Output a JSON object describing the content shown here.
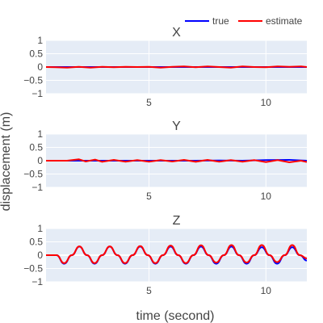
{
  "chart_data": {
    "type": "line",
    "xlabel": "time (second)",
    "ylabel": "displacement (m)",
    "legend": {
      "placement": "top-right",
      "entries": [
        {
          "name": "true",
          "color": "#0000ff"
        },
        {
          "name": "estimate",
          "color": "#ff0000"
        }
      ]
    },
    "grid": true,
    "background_color": "#e5ecf6",
    "xlim": [
      0.6,
      11.75
    ],
    "x_tick_values": [
      5,
      10
    ],
    "x_tick_labels": [
      "5",
      "10"
    ],
    "panels": [
      {
        "title": "X",
        "ylim": [
          -1,
          1
        ],
        "y_tick_values": [
          1,
          0.5,
          0,
          -0.5,
          -1
        ],
        "y_tick_labels": [
          "1",
          "0.5",
          "0",
          "−0.5",
          "−1"
        ],
        "series": [
          {
            "name": "true",
            "x": [
              0.6,
              1.5,
              2.5,
              3.5,
              4.5,
              5.5,
              6.5,
              7.5,
              8.5,
              9.5,
              10.5,
              11.75
            ],
            "y": [
              0,
              0,
              0,
              0,
              0,
              0,
              0,
              0,
              0,
              0,
              0,
              0
            ]
          },
          {
            "name": "estimate",
            "x": [
              0.6,
              1.0,
              1.5,
              2.0,
              2.5,
              3.0,
              3.5,
              4.0,
              4.5,
              5.0,
              5.5,
              6.0,
              6.5,
              7.0,
              7.5,
              8.0,
              8.5,
              9.0,
              9.5,
              10.0,
              10.5,
              11.0,
              11.5,
              11.75
            ],
            "y": [
              0,
              -0.01,
              -0.02,
              0.01,
              -0.02,
              0.01,
              -0.01,
              0.01,
              0.0,
              0.01,
              -0.02,
              0.01,
              0.02,
              -0.01,
              0.02,
              0.0,
              -0.02,
              0.02,
              0.0,
              -0.01,
              0.02,
              0.01,
              0.02,
              0.0
            ]
          }
        ]
      },
      {
        "title": "Y",
        "ylim": [
          -1,
          1
        ],
        "y_tick_values": [
          1,
          0.5,
          0,
          -0.5,
          -1
        ],
        "y_tick_labels": [
          "1",
          "0.5",
          "0",
          "−0.5",
          "−1"
        ],
        "series": [
          {
            "name": "true",
            "x": [
              0.6,
              2.0,
              3.0,
              4.0,
              5.0,
              6.0,
              7.0,
              8.0,
              9.0,
              10.0,
              11.0,
              11.75
            ],
            "y": [
              0,
              0,
              0,
              0,
              0,
              0,
              0,
              0.01,
              0,
              0.02,
              0.03,
              0
            ]
          },
          {
            "name": "estimate",
            "x": [
              0.6,
              1.5,
              2.0,
              2.3,
              2.7,
              3.0,
              3.5,
              4.0,
              4.5,
              5.0,
              5.5,
              6.0,
              6.5,
              7.0,
              7.5,
              8.0,
              8.5,
              9.0,
              9.5,
              10.0,
              10.5,
              11.0,
              11.5,
              11.75
            ],
            "y": [
              0,
              0,
              0.05,
              -0.03,
              0.04,
              -0.04,
              0.03,
              -0.04,
              0.02,
              -0.04,
              0.02,
              -0.03,
              0.03,
              -0.04,
              0.03,
              -0.04,
              0.02,
              -0.04,
              0.02,
              -0.05,
              0.02,
              -0.06,
              0.0,
              -0.05
            ]
          }
        ]
      },
      {
        "title": "Z",
        "ylim": [
          -1,
          1
        ],
        "y_tick_values": [
          1,
          0.5,
          0,
          -0.5,
          -1
        ],
        "y_tick_labels": [
          "1",
          "0.5",
          "0",
          "−0.5",
          "−1"
        ],
        "oscillation": {
          "start": 1.05,
          "period": 1.3,
          "amplitude": 0.32
        },
        "series": [
          {
            "name": "true",
            "x": [
              0.6,
              1.05,
              1.375,
              1.7,
              2.025,
              2.35,
              2.675,
              3.0,
              3.325,
              3.65,
              3.975,
              4.3,
              4.625,
              4.95,
              5.275,
              5.6,
              5.925,
              6.25,
              6.575,
              6.9,
              7.225,
              7.55,
              7.875,
              8.2,
              8.525,
              8.85,
              9.175,
              9.5,
              9.825,
              10.15,
              10.475,
              10.8,
              11.125,
              11.45,
              11.75
            ],
            "y": [
              0,
              0,
              -0.32,
              0,
              0.32,
              0,
              -0.32,
              0,
              0.32,
              0,
              -0.32,
              0,
              0.32,
              0,
              -0.32,
              0,
              0.32,
              0,
              -0.32,
              0,
              0.32,
              0,
              -0.32,
              0,
              0.32,
              0,
              -0.32,
              0,
              0.3,
              0,
              -0.32,
              0,
              0.3,
              0,
              -0.2
            ]
          },
          {
            "name": "estimate",
            "x": [
              0.6,
              1.05,
              1.375,
              1.7,
              2.025,
              2.35,
              2.675,
              3.0,
              3.325,
              3.65,
              3.975,
              4.3,
              4.625,
              4.95,
              5.275,
              5.6,
              5.925,
              6.25,
              6.575,
              6.9,
              7.225,
              7.55,
              7.875,
              8.2,
              8.525,
              8.85,
              9.175,
              9.5,
              9.825,
              10.15,
              10.475,
              10.8,
              11.125,
              11.45,
              11.75
            ],
            "y": [
              0,
              0,
              -0.3,
              0,
              0.33,
              0,
              -0.3,
              0,
              0.33,
              0,
              -0.3,
              0,
              0.34,
              0,
              -0.3,
              0,
              0.36,
              0,
              -0.3,
              0,
              0.37,
              0,
              -0.28,
              0,
              0.38,
              0,
              -0.28,
              0,
              0.38,
              0,
              -0.26,
              0,
              0.38,
              0,
              -0.12
            ]
          }
        ]
      }
    ]
  }
}
